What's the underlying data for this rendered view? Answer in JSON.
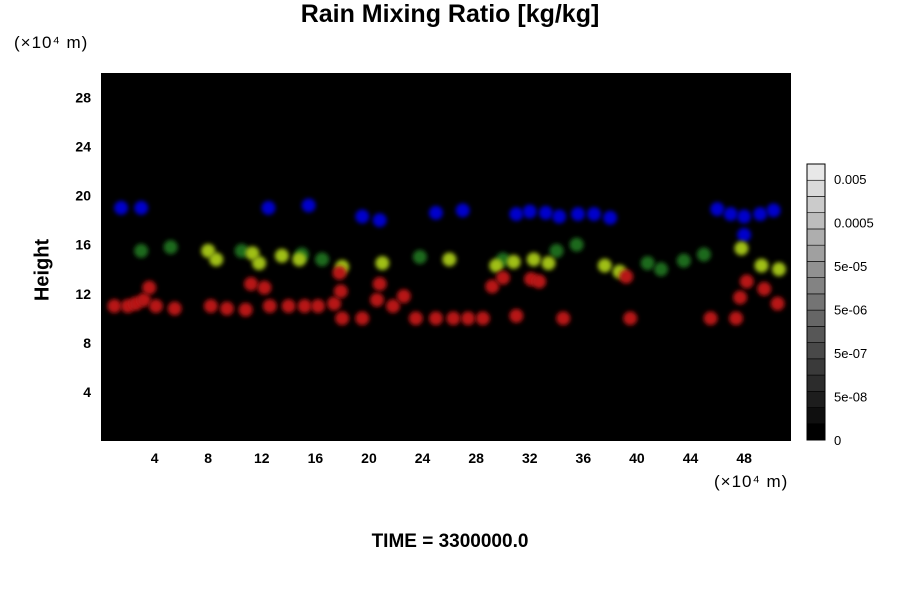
{
  "chart_data": {
    "type": "heatmap",
    "title": "Rain Mixing Ratio [kg/kg]",
    "ylabel": "Height",
    "y_unit": "(×10⁴ m)",
    "x_unit": "(×10⁴ m)",
    "xlim": [
      0,
      51.5
    ],
    "ylim": [
      0,
      30
    ],
    "x_ticks": [
      "4",
      "8",
      "12",
      "16",
      "20",
      "24",
      "28",
      "32",
      "36",
      "40",
      "44",
      "48"
    ],
    "y_ticks": [
      "4",
      "8",
      "12",
      "16",
      "20",
      "24",
      "28"
    ],
    "colorbar_ticks": [
      "0.005",
      "0.0005",
      "5e-05",
      "5e-06",
      "5e-07",
      "5e-08",
      "0"
    ],
    "background_color": "#000000",
    "features": [
      {
        "color": "#0000cc",
        "points": [
          [
            1.5,
            19
          ],
          [
            3,
            19
          ],
          [
            12.5,
            19
          ],
          [
            15.5,
            19.2
          ],
          [
            19.5,
            18.3
          ],
          [
            20.8,
            18
          ],
          [
            25,
            18.6
          ],
          [
            27,
            18.8
          ],
          [
            31,
            18.5
          ],
          [
            32,
            18.7
          ],
          [
            33.2,
            18.6
          ],
          [
            34.2,
            18.3
          ],
          [
            35.6,
            18.5
          ],
          [
            36.8,
            18.5
          ],
          [
            38,
            18.2
          ],
          [
            46,
            18.9
          ],
          [
            47,
            18.5
          ],
          [
            48,
            18.3
          ],
          [
            49.2,
            18.5
          ],
          [
            50.2,
            18.8
          ],
          [
            48,
            16.8
          ]
        ]
      },
      {
        "color": "#1f6a1f",
        "points": [
          [
            3,
            15.5
          ],
          [
            5.2,
            15.8
          ],
          [
            10.5,
            15.5
          ],
          [
            15,
            15.2
          ],
          [
            16.5,
            14.8
          ],
          [
            23.8,
            15
          ],
          [
            30,
            14.8
          ],
          [
            34,
            15.5
          ],
          [
            35.5,
            16
          ],
          [
            40.8,
            14.5
          ],
          [
            41.8,
            14
          ],
          [
            43.5,
            14.7
          ],
          [
            45,
            15.2
          ]
        ]
      },
      {
        "color": "#a0c018",
        "points": [
          [
            8,
            15.5
          ],
          [
            8.6,
            14.8
          ],
          [
            11.3,
            15.3
          ],
          [
            11.8,
            14.5
          ],
          [
            13.5,
            15.1
          ],
          [
            14.8,
            14.8
          ],
          [
            18,
            14.2
          ],
          [
            21,
            14.5
          ],
          [
            26,
            14.8
          ],
          [
            29.5,
            14.3
          ],
          [
            30.8,
            14.6
          ],
          [
            32.3,
            14.8
          ],
          [
            33.4,
            14.5
          ],
          [
            37.6,
            14.3
          ],
          [
            38.7,
            13.8
          ],
          [
            47.8,
            15.7
          ],
          [
            49.3,
            14.3
          ],
          [
            50.6,
            14
          ]
        ]
      },
      {
        "color": "#b81414",
        "points": [
          [
            1,
            11
          ],
          [
            2,
            11
          ],
          [
            2.6,
            11.2
          ],
          [
            3.2,
            11.5
          ],
          [
            3.6,
            12.5
          ],
          [
            4.1,
            11
          ],
          [
            5.5,
            10.8
          ],
          [
            8.2,
            11
          ],
          [
            9.4,
            10.8
          ],
          [
            10.8,
            10.7
          ],
          [
            11.2,
            12.8
          ],
          [
            12.2,
            12.5
          ],
          [
            12.6,
            11
          ],
          [
            14,
            11
          ],
          [
            15.2,
            11
          ],
          [
            16.2,
            11
          ],
          [
            17.4,
            11.2
          ],
          [
            17.9,
            12.2
          ],
          [
            17.8,
            13.7
          ],
          [
            18,
            10
          ],
          [
            19.5,
            10
          ],
          [
            20.6,
            11.5
          ],
          [
            20.8,
            12.8
          ],
          [
            21.8,
            11
          ],
          [
            22.6,
            11.8
          ],
          [
            23.5,
            10
          ],
          [
            25,
            10
          ],
          [
            26.3,
            10
          ],
          [
            27.4,
            10
          ],
          [
            28.5,
            10
          ],
          [
            29.2,
            12.6
          ],
          [
            30,
            13.3
          ],
          [
            31,
            10.2
          ],
          [
            32.1,
            13.2
          ],
          [
            32.7,
            13
          ],
          [
            34.5,
            10
          ],
          [
            39.2,
            13.4
          ],
          [
            39.5,
            10
          ],
          [
            45.5,
            10
          ],
          [
            47.4,
            10
          ],
          [
            47.7,
            11.7
          ],
          [
            48.2,
            13
          ],
          [
            49.5,
            12.4
          ],
          [
            50.5,
            11.2
          ]
        ]
      }
    ]
  },
  "time_label": "TIME = 3300000.0"
}
